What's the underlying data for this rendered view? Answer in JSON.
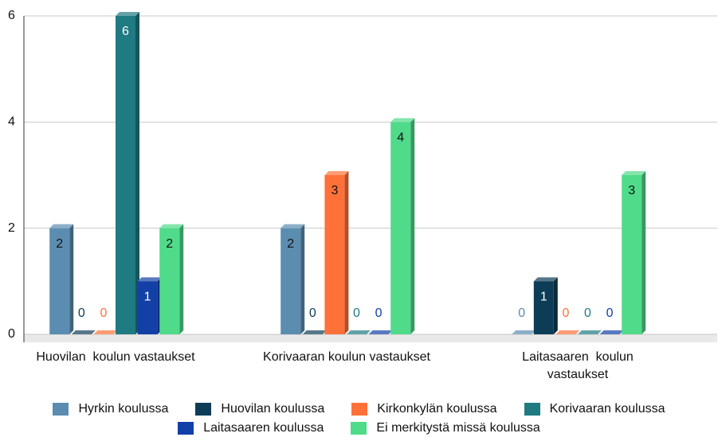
{
  "chart_data": {
    "type": "bar",
    "categories": [
      "Huovilan  koulun vastaukset",
      "Korivaaran koulun vastaukset",
      "Laitasaaren  koulun vastaukset"
    ],
    "series": [
      {
        "name": "Hyrkin koulussa",
        "color": "#5b8db0",
        "values": [
          2,
          2,
          0
        ]
      },
      {
        "name": "Huovilan koulussa",
        "color": "#0d3d56",
        "values": [
          0,
          0,
          1
        ]
      },
      {
        "name": "Kirkonkylän koulussa",
        "color": "#ff7139",
        "values": [
          0,
          3,
          0
        ]
      },
      {
        "name": "Korivaaran koulussa",
        "color": "#1f7a82",
        "values": [
          6,
          0,
          0
        ]
      },
      {
        "name": "Laitasaaren koulussa",
        "color": "#1240a6",
        "values": [
          1,
          0,
          0
        ]
      },
      {
        "name": "Ei merkitystä missä koulussa",
        "color": "#4fdb8a",
        "values": [
          2,
          4,
          3
        ]
      }
    ],
    "ylim": [
      0,
      6
    ],
    "yticks": [
      0,
      2,
      4,
      6
    ],
    "grid": true,
    "legend": "bottom"
  }
}
